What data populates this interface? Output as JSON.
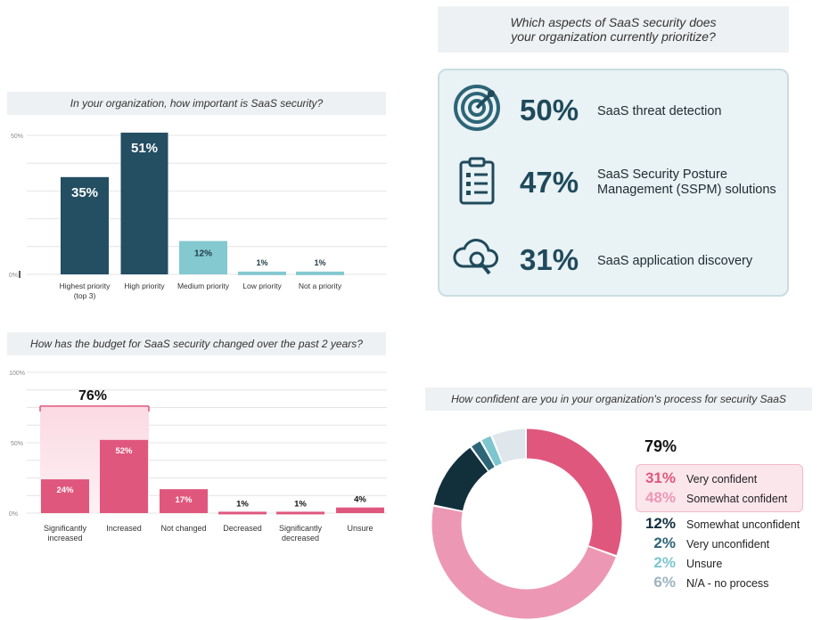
{
  "charts": {
    "importance": {
      "title": "In your organization, how important is SaaS security?"
    },
    "budget": {
      "title": "How has the budget for SaaS security changed over the past 2 years?",
      "combined_label": "76%"
    },
    "aspects": {
      "title_line1": "Which aspects of SaaS security does",
      "title_line2": "your organization currently prioritize?"
    },
    "confidence": {
      "title": "How confident are you in your organization's process for security SaaS",
      "total_confident": "79%"
    }
  },
  "chart_data": [
    {
      "type": "bar",
      "categories": [
        "Highest priority (top 3)",
        "High priority",
        "Medium priority",
        "Low priority",
        "Not a priority"
      ],
      "values": [
        35,
        51,
        12,
        1,
        1
      ],
      "value_labels": [
        "35%",
        "51%",
        "12%",
        "1%",
        "1%"
      ],
      "yticks": [
        "0%",
        "50%"
      ],
      "ylim": [
        0,
        50
      ],
      "colors": [
        "#244e62",
        "#244e62",
        "#83c9cf",
        "#83c9cf",
        "#83c9cf"
      ],
      "grid": true
    },
    {
      "type": "bar",
      "categories": [
        "Significantly increased",
        "Increased",
        "Not changed",
        "Decreased",
        "Significantly decreased",
        "Unsure"
      ],
      "values": [
        24,
        52,
        17,
        1,
        1,
        4
      ],
      "value_labels": [
        "24%",
        "52%",
        "17%",
        "1%",
        "1%",
        "4%"
      ],
      "yticks": [
        "0%",
        "50%",
        "100%"
      ],
      "ylim": [
        0,
        100
      ],
      "color": "#e0577e",
      "grid": true
    },
    {
      "type": "table",
      "rows": [
        {
          "value": "50%",
          "label": "SaaS threat detection",
          "icon": "threat-detection-icon"
        },
        {
          "value": "47%",
          "label_lines": [
            "SaaS Security Posture",
            "Management (SSPM) solutions"
          ],
          "icon": "clipboard-checklist-icon"
        },
        {
          "value": "31%",
          "label": "SaaS application discovery",
          "icon": "cloud-search-icon"
        }
      ]
    },
    {
      "type": "pie",
      "donut": true,
      "slices": [
        {
          "label": "Very confident",
          "value": 31,
          "display": "31%",
          "color": "#e0577e"
        },
        {
          "label": "Somewhat confident",
          "value": 48,
          "display": "48%",
          "color": "#ec98b4"
        },
        {
          "label": "Somewhat unconfident",
          "value": 12,
          "display": "12%",
          "color": "#122f3c"
        },
        {
          "label": "Very unconfident",
          "value": 2,
          "display": "2%",
          "color": "#2d6577"
        },
        {
          "label": "Unsure",
          "value": 2,
          "display": "2%",
          "color": "#7ec6cf"
        },
        {
          "label": "N/A - no process",
          "value": 6,
          "display": "6%",
          "color": "#dfe7ed"
        }
      ],
      "pct_colors": [
        "#e0577e",
        "#ec98b4",
        "#122f3c",
        "#2d6577",
        "#7ec6cf",
        "#9db3c0"
      ]
    }
  ]
}
